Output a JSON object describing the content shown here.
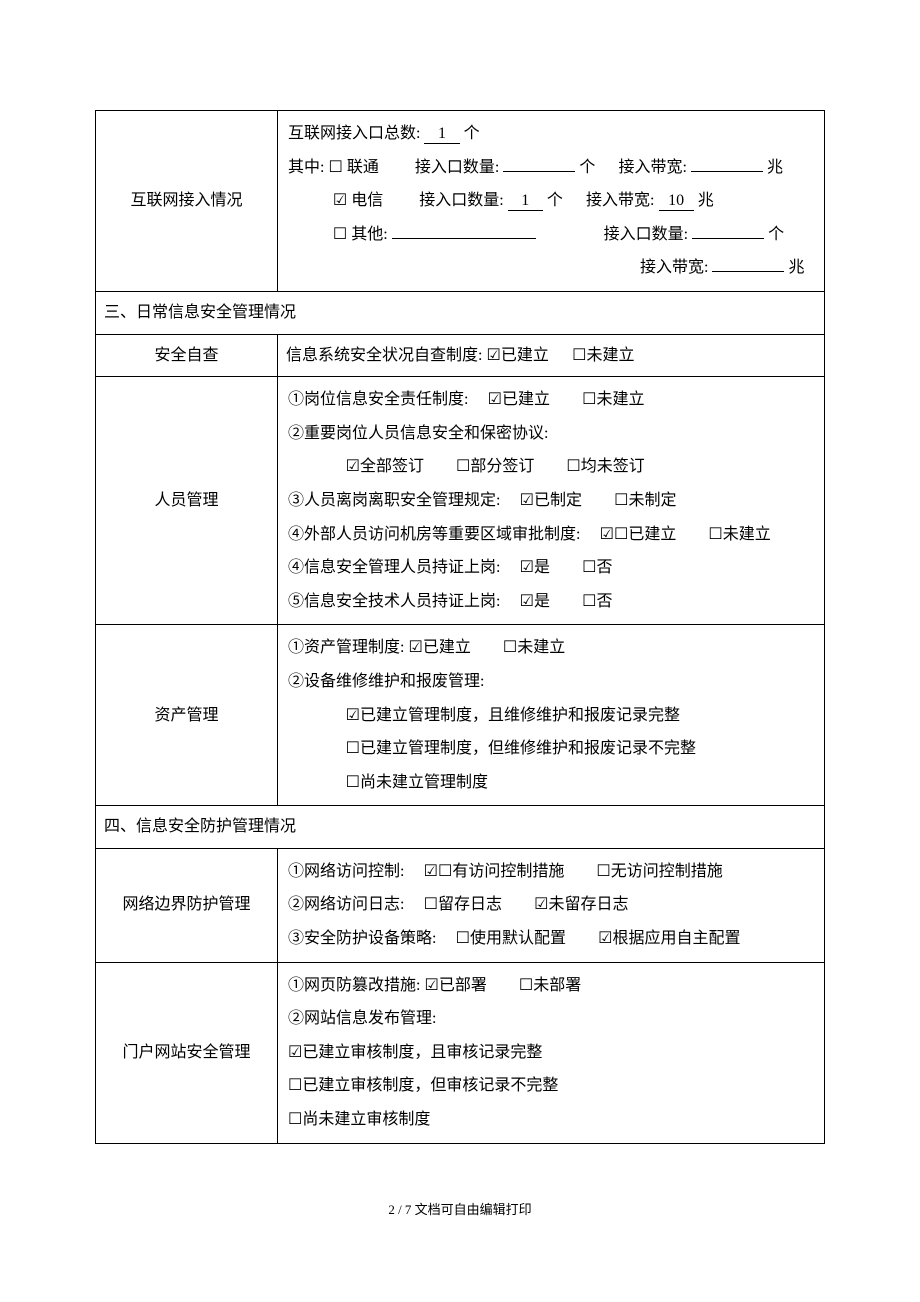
{
  "checkbox": {
    "checked": "☑",
    "unchecked": "☐"
  },
  "internet": {
    "label": "互联网接入情况",
    "total_prefix": "互联网接入口总数:",
    "total_value": "1",
    "total_suffix": "个",
    "which_prefix": "其中:",
    "unicom": {
      "checked": false,
      "name": "联通",
      "ports_label": "接入口数量:",
      "ports_value": "",
      "ports_suffix": "个",
      "bw_label": "接入带宽:",
      "bw_value": "",
      "bw_suffix": "兆"
    },
    "telecom": {
      "checked": true,
      "name": "电信",
      "ports_label": "接入口数量:",
      "ports_value": "1",
      "ports_suffix": "个",
      "bw_label": "接入带宽:",
      "bw_value": "10",
      "bw_suffix": "兆"
    },
    "other": {
      "checked": false,
      "name": "其他:",
      "name_value": "",
      "ports_label": "接入口数量:",
      "ports_value": "",
      "ports_suffix": "个",
      "bw_label": "接入带宽:",
      "bw_value": "",
      "bw_suffix": "兆"
    }
  },
  "section3": {
    "title": "三、日常信息安全管理情况",
    "self_check": {
      "label": "安全自查",
      "text": "信息系统安全状况自查制度:",
      "opt_yes": "已建立",
      "yes_checked": true,
      "opt_no": "未建立",
      "no_checked": false
    },
    "personnel": {
      "label": "人员管理",
      "items": [
        {
          "num": "①",
          "text": "岗位信息安全责任制度:",
          "opts": [
            {
              "t": "已建立",
              "c": true
            },
            {
              "t": "未建立",
              "c": false
            }
          ]
        },
        {
          "num": "②",
          "text": "重要岗位人员信息安全和保密协议:",
          "opts_line2": [
            {
              "t": "全部签订",
              "c": true
            },
            {
              "t": "部分签订",
              "c": false
            },
            {
              "t": "均未签订",
              "c": false
            }
          ]
        },
        {
          "num": "③",
          "text": "人员离岗离职安全管理规定:",
          "opts": [
            {
              "t": "已制定",
              "c": true
            },
            {
              "t": "未制定",
              "c": false
            }
          ]
        },
        {
          "num": "④",
          "text": "外部人员访问机房等重要区域审批制度:",
          "opts": [
            {
              "t": "☐已建立",
              "c": true,
              "raw": true
            },
            {
              "t": "未建立",
              "c": false
            }
          ]
        },
        {
          "num": "④",
          "text": "信息安全管理人员持证上岗:",
          "opts": [
            {
              "t": "是",
              "c": true
            },
            {
              "t": "否",
              "c": false
            }
          ]
        },
        {
          "num": "⑤",
          "text": "信息安全技术人员持证上岗:",
          "opts": [
            {
              "t": "是",
              "c": true
            },
            {
              "t": "否",
              "c": false
            }
          ]
        }
      ]
    },
    "asset": {
      "label": "资产管理",
      "item1": {
        "num": "①",
        "text": "资产管理制度:",
        "opts": [
          {
            "t": "已建立",
            "c": true
          },
          {
            "t": "未建立",
            "c": false
          }
        ]
      },
      "item2": {
        "num": "②",
        "text": "设备维修维护和报废管理:",
        "sub": [
          {
            "t": "已建立管理制度，且维修维护和报废记录完整",
            "c": true
          },
          {
            "t": "已建立管理制度，但维修维护和报废记录不完整",
            "c": false
          },
          {
            "t": "尚未建立管理制度",
            "c": false
          }
        ]
      }
    }
  },
  "section4": {
    "title": "四、信息安全防护管理情况",
    "network": {
      "label": "网络边界防护管理",
      "items": [
        {
          "num": "①",
          "text": "网络访问控制:",
          "opts": [
            {
              "t": "☐有访问控制措施",
              "c": true,
              "raw": true
            },
            {
              "t": "无访问控制措施",
              "c": false
            }
          ]
        },
        {
          "num": "②",
          "text": "网络访问日志:",
          "opts": [
            {
              "t": "留存日志",
              "c": false
            },
            {
              "t": "未留存日志",
              "c": true
            }
          ]
        },
        {
          "num": "③",
          "text": "安全防护设备策略:",
          "opts": [
            {
              "t": "使用默认配置",
              "c": false
            },
            {
              "t": "根据应用自主配置",
              "c": true
            }
          ]
        }
      ]
    },
    "portal": {
      "label": "门户网站安全管理",
      "item1": {
        "num": "①",
        "text": "网页防篡改措施:",
        "opts": [
          {
            "t": "已部署",
            "c": true
          },
          {
            "t": "未部署",
            "c": false
          }
        ]
      },
      "item2": {
        "num": "②",
        "text": "网站信息发布管理:",
        "sub": [
          {
            "t": "已建立审核制度，且审核记录完整",
            "c": true
          },
          {
            "t": "已建立审核制度，但审核记录不完整",
            "c": false
          },
          {
            "t": "尚未建立审核制度",
            "c": false
          }
        ]
      }
    }
  },
  "footer": "2 / 7 文档可自由编辑打印"
}
